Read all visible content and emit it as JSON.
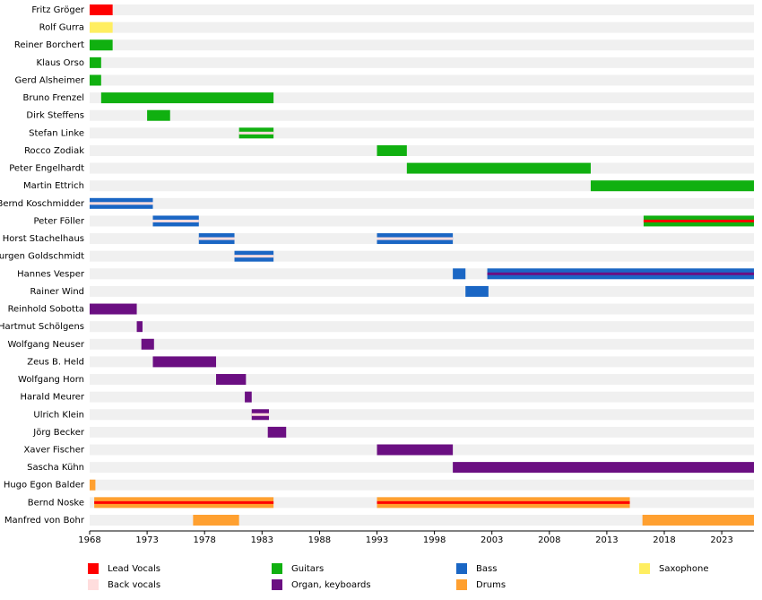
{
  "chart_data": {
    "type": "timeline",
    "xlim": [
      1968,
      2025.8
    ],
    "xticks": [
      1968,
      1973,
      1978,
      1983,
      1988,
      1993,
      1998,
      2003,
      2008,
      2013,
      2018,
      2023
    ],
    "series": [
      {
        "name": "Lead Vocals",
        "color": "#ff0000"
      },
      {
        "name": "Back vocals",
        "color": "#ffdddd"
      },
      {
        "name": "Guitars",
        "color": "#10b010"
      },
      {
        "name": "Organ, keyboards",
        "color": "#6b0f82"
      },
      {
        "name": "Bass",
        "color": "#1a66c4"
      },
      {
        "name": "Drums",
        "color": "#ffa030"
      },
      {
        "name": "Saxophone",
        "color": "#ffee60"
      }
    ],
    "members": [
      {
        "name": "Fritz Gröger",
        "bars": [
          {
            "start": 1968,
            "end": 1970,
            "role": 0
          }
        ]
      },
      {
        "name": "Rolf Gurra",
        "bars": [
          {
            "start": 1968,
            "end": 1970,
            "role": 6
          }
        ]
      },
      {
        "name": "Reiner Borchert",
        "bars": [
          {
            "start": 1968,
            "end": 1970,
            "role": 2
          }
        ]
      },
      {
        "name": "Klaus Orso",
        "bars": [
          {
            "start": 1968,
            "end": 1969,
            "role": 2
          }
        ]
      },
      {
        "name": "Gerd Alsheimer",
        "bars": [
          {
            "start": 1968,
            "end": 1969,
            "role": 2
          }
        ]
      },
      {
        "name": "Bruno Frenzel",
        "bars": [
          {
            "start": 1969,
            "end": 1984,
            "role": 2
          }
        ]
      },
      {
        "name": "Dirk Steffens",
        "bars": [
          {
            "start": 1973,
            "end": 1975,
            "role": 2
          }
        ]
      },
      {
        "name": "Stefan Linke",
        "bars": [
          {
            "start": 1981,
            "end": 1984,
            "role": 2,
            "stripe": 1
          }
        ]
      },
      {
        "name": "Rocco Zodiak",
        "bars": [
          {
            "start": 1993,
            "end": 1995.6,
            "role": 2
          }
        ]
      },
      {
        "name": "Peter Engelhardt",
        "bars": [
          {
            "start": 1995.6,
            "end": 2011.6,
            "role": 2
          }
        ]
      },
      {
        "name": "Martin Ettrich",
        "bars": [
          {
            "start": 2011.6,
            "end": 2025.8,
            "role": 2
          }
        ]
      },
      {
        "name": "Bernd Koschmidder",
        "bars": [
          {
            "start": 1968,
            "end": 1973.5,
            "role": 4,
            "stripe": 1
          }
        ]
      },
      {
        "name": "Peter Föller",
        "bars": [
          {
            "start": 1973.5,
            "end": 1977.5,
            "role": 4,
            "stripe": 1
          },
          {
            "start": 2016.2,
            "end": 2025.8,
            "role": 2,
            "stripe": 0
          }
        ]
      },
      {
        "name": "Horst Stachelhaus",
        "bars": [
          {
            "start": 1977.5,
            "end": 1980.6,
            "role": 4,
            "stripe": 1
          },
          {
            "start": 1993,
            "end": 1999.6,
            "role": 4,
            "stripe": 1
          }
        ]
      },
      {
        "name": "Jurgen Goldschmidt",
        "bars": [
          {
            "start": 1980.6,
            "end": 1984,
            "role": 4,
            "stripe": 1
          }
        ]
      },
      {
        "name": "Hannes Vesper",
        "bars": [
          {
            "start": 1999.6,
            "end": 2000.7,
            "role": 4
          },
          {
            "start": 2002.6,
            "end": 2025.8,
            "role": 4,
            "stripe": 3
          }
        ]
      },
      {
        "name": "Rainer Wind",
        "bars": [
          {
            "start": 2000.7,
            "end": 2002.7,
            "role": 4
          }
        ]
      },
      {
        "name": "Reinhold Sobotta",
        "bars": [
          {
            "start": 1968,
            "end": 1972.1,
            "role": 3
          }
        ]
      },
      {
        "name": "Hartmut Schölgens",
        "bars": [
          {
            "start": 1972.1,
            "end": 1972.6,
            "role": 3
          }
        ]
      },
      {
        "name": "Wolfgang Neuser",
        "bars": [
          {
            "start": 1972.5,
            "end": 1973.6,
            "role": 3
          }
        ]
      },
      {
        "name": "Zeus B. Held",
        "bars": [
          {
            "start": 1973.5,
            "end": 1979,
            "role": 3
          }
        ]
      },
      {
        "name": "Wolfgang Horn",
        "bars": [
          {
            "start": 1979,
            "end": 1981.6,
            "role": 3
          }
        ]
      },
      {
        "name": "Harald Meurer",
        "bars": [
          {
            "start": 1981.5,
            "end": 1982.1,
            "role": 3
          }
        ]
      },
      {
        "name": "Ulrich Klein",
        "bars": [
          {
            "start": 1982.1,
            "end": 1983.6,
            "role": 3,
            "stripe": 1
          }
        ]
      },
      {
        "name": "Jörg Becker",
        "bars": [
          {
            "start": 1983.5,
            "end": 1985.1,
            "role": 3
          }
        ]
      },
      {
        "name": "Xaver Fischer",
        "bars": [
          {
            "start": 1993,
            "end": 1999.6,
            "role": 3
          }
        ]
      },
      {
        "name": "Sascha Kühn",
        "bars": [
          {
            "start": 1999.6,
            "end": 2025.8,
            "role": 3
          }
        ]
      },
      {
        "name": "Hugo Egon Balder",
        "bars": [
          {
            "start": 1968,
            "end": 1968.5,
            "role": 5
          }
        ]
      },
      {
        "name": "Bernd Noske",
        "bars": [
          {
            "start": 1968.4,
            "end": 1984,
            "role": 5,
            "stripe": 0
          },
          {
            "start": 1993,
            "end": 2015,
            "role": 5,
            "stripe": 0
          }
        ]
      },
      {
        "name": "Manfred von Bohr",
        "bars": [
          {
            "start": 1977,
            "end": 1981,
            "role": 5
          },
          {
            "start": 2016.1,
            "end": 2025.8,
            "role": 5
          }
        ]
      }
    ]
  }
}
